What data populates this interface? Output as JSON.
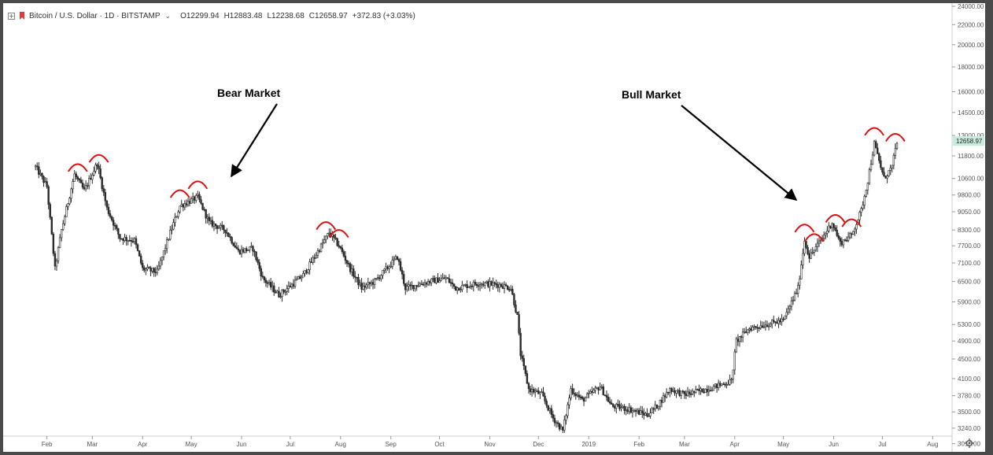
{
  "header": {
    "symbol": "Bitcoin / U.S. Dollar · 1D · BITSTAMP",
    "open": "O12299.94",
    "high": "H12883.48",
    "low": "L12238.68",
    "close": "C12658.97",
    "change": "+372.83 (+3.03%)"
  },
  "annotations": {
    "bear": "Bear Market",
    "bull": "Bull Market"
  },
  "colors": {
    "candle": "#2b2b2b",
    "arc": "#e01010",
    "price_label_bg": "#c8ecdc"
  },
  "chart_data": {
    "type": "candlestick",
    "title": "Bitcoin / U.S. Dollar · 1D · BITSTAMP",
    "y_scale": "log",
    "ylim": [
      3120,
      24000
    ],
    "yticks": [
      "24000.00",
      "22000.00",
      "20000.00",
      "18000.00",
      "16000.00",
      "14500.00",
      "13000.00",
      "11800.00",
      "10600.00",
      "9800.00",
      "9050.00",
      "8300.00",
      "7700.00",
      "7100.00",
      "6500.00",
      "5900.00",
      "5300.00",
      "4900.00",
      "4500.00",
      "4100.00",
      "3780.00",
      "3500.00",
      "3240.00",
      "3010.00"
    ],
    "last_price_label": "12658.97",
    "xticks": [
      "Feb",
      "Mar",
      "Apr",
      "May",
      "Jun",
      "Jul",
      "Aug",
      "Sep",
      "Oct",
      "Nov",
      "Dec",
      "2019",
      "Feb",
      "Mar",
      "Apr",
      "May",
      "Jun",
      "Jul",
      "Aug"
    ],
    "months": [
      "2018-02",
      "2018-03",
      "2018-04",
      "2018-05",
      "2018-06",
      "2018-07",
      "2018-08",
      "2018-09",
      "2018-10",
      "2018-11",
      "2018-12",
      "2019-01",
      "2019-02",
      "2019-03",
      "2019-04",
      "2019-05",
      "2019-06",
      "2019-07",
      "2019-08"
    ],
    "price_path": [
      [
        "2018-01-25",
        11200
      ],
      [
        "2018-02-01",
        10200
      ],
      [
        "2018-02-06",
        6900
      ],
      [
        "2018-02-10",
        8300
      ],
      [
        "2018-02-18",
        10800
      ],
      [
        "2018-02-24",
        10000
      ],
      [
        "2018-03-04",
        11400
      ],
      [
        "2018-03-10",
        9200
      ],
      [
        "2018-03-18",
        8000
      ],
      [
        "2018-03-27",
        7900
      ],
      [
        "2018-04-01",
        6900
      ],
      [
        "2018-04-10",
        6800
      ],
      [
        "2018-04-18",
        8200
      ],
      [
        "2018-04-24",
        9300
      ],
      [
        "2018-05-05",
        9700
      ],
      [
        "2018-05-12",
        8600
      ],
      [
        "2018-05-22",
        8300
      ],
      [
        "2018-05-30",
        7500
      ],
      [
        "2018-06-08",
        7600
      ],
      [
        "2018-06-14",
        6600
      ],
      [
        "2018-06-24",
        6100
      ],
      [
        "2018-07-02",
        6400
      ],
      [
        "2018-07-09",
        6700
      ],
      [
        "2018-07-17",
        7400
      ],
      [
        "2018-07-25",
        8200
      ],
      [
        "2018-07-31",
        7700
      ],
      [
        "2018-08-07",
        6900
      ],
      [
        "2018-08-14",
        6300
      ],
      [
        "2018-08-22",
        6500
      ],
      [
        "2018-08-31",
        7000
      ],
      [
        "2018-09-05",
        7300
      ],
      [
        "2018-09-10",
        6300
      ],
      [
        "2018-09-25",
        6500
      ],
      [
        "2018-10-05",
        6600
      ],
      [
        "2018-10-11",
        6300
      ],
      [
        "2018-10-25",
        6450
      ],
      [
        "2018-11-07",
        6400
      ],
      [
        "2018-11-14",
        6300
      ],
      [
        "2018-11-18",
        5500
      ],
      [
        "2018-11-20",
        4600
      ],
      [
        "2018-11-25",
        3900
      ],
      [
        "2018-12-03",
        3800
      ],
      [
        "2018-12-10",
        3400
      ],
      [
        "2018-12-16",
        3200
      ],
      [
        "2018-12-21",
        3900
      ],
      [
        "2018-12-28",
        3700
      ],
      [
        "2019-01-08",
        3950
      ],
      [
        "2019-01-15",
        3600
      ],
      [
        "2019-01-25",
        3550
      ],
      [
        "2019-02-06",
        3450
      ],
      [
        "2019-02-12",
        3600
      ],
      [
        "2019-02-20",
        3900
      ],
      [
        "2019-03-01",
        3800
      ],
      [
        "2019-03-15",
        3900
      ],
      [
        "2019-03-30",
        4050
      ],
      [
        "2019-04-02",
        4900
      ],
      [
        "2019-04-10",
        5200
      ],
      [
        "2019-04-20",
        5300
      ],
      [
        "2019-05-01",
        5400
      ],
      [
        "2019-05-10",
        6300
      ],
      [
        "2019-05-14",
        7900
      ],
      [
        "2019-05-17",
        7300
      ],
      [
        "2019-05-24",
        7900
      ],
      [
        "2019-05-31",
        8600
      ],
      [
        "2019-06-05",
        7800
      ],
      [
        "2019-06-12",
        8100
      ],
      [
        "2019-06-18",
        9100
      ],
      [
        "2019-06-22",
        10500
      ],
      [
        "2019-06-26",
        12500
      ],
      [
        "2019-07-02",
        10600
      ],
      [
        "2019-07-07",
        11200
      ],
      [
        "2019-07-10",
        12658
      ]
    ],
    "peak_markers": [
      "2018-02-20",
      "2018-03-05",
      "2018-04-24",
      "2018-05-05",
      "2018-07-23",
      "2018-07-31",
      "2019-05-14",
      "2019-05-20",
      "2019-06-02",
      "2019-06-12",
      "2019-06-26",
      "2019-07-09"
    ]
  }
}
